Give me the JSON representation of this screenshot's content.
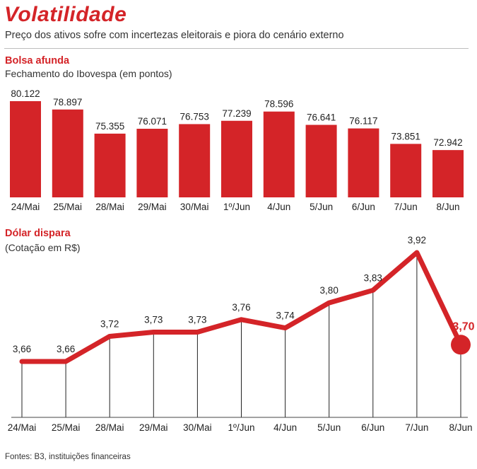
{
  "title": "Volatilidade",
  "subtitle": "Preço dos ativos sofre com incertezas eleitorais e piora do cenário externo",
  "source": "Fontes: B3, instituições financeiras",
  "chart_data": [
    {
      "type": "bar",
      "title": "Bolsa afunda",
      "subtitle": "Fechamento do Ibovespa (em pontos)",
      "categories": [
        "24/Mai",
        "25/Mai",
        "28/Mai",
        "29/Mai",
        "30/Mai",
        "1º/Jun",
        "4/Jun",
        "5/Jun",
        "6/Jun",
        "7/Jun",
        "8/Jun"
      ],
      "values": [
        80122,
        78897,
        75355,
        76071,
        76753,
        77239,
        78596,
        76641,
        76117,
        73851,
        72942
      ],
      "labels": [
        "80.122",
        "78.897",
        "75.355",
        "76.071",
        "76.753",
        "77.239",
        "78.596",
        "76.641",
        "76.117",
        "73.851",
        "72.942"
      ],
      "color": "#d42428"
    },
    {
      "type": "line",
      "title": "Dólar dispara",
      "subtitle": "(Cotação em R$)",
      "categories": [
        "24/Mai",
        "25/Mai",
        "28/Mai",
        "29/Mai",
        "30/Mai",
        "1º/Jun",
        "4/Jun",
        "5/Jun",
        "6/Jun",
        "7/Jun",
        "8/Jun"
      ],
      "values": [
        3.66,
        3.66,
        3.72,
        3.73,
        3.73,
        3.76,
        3.74,
        3.8,
        3.83,
        3.92,
        3.7
      ],
      "labels": [
        "3,66",
        "3,66",
        "3,72",
        "3,73",
        "3,73",
        "3,76",
        "3,74",
        "3,80",
        "3,83",
        "3,92",
        "3,70"
      ],
      "highlight_last": true,
      "color": "#d42428"
    }
  ]
}
